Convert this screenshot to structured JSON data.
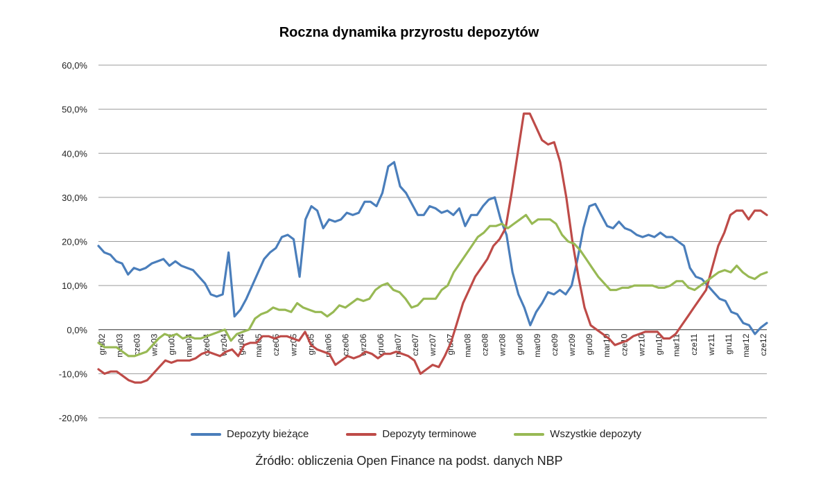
{
  "chart_data": {
    "type": "line",
    "title": "Roczna dynamika przyrostu depozytów",
    "source": "Źródło: obliczenia Open Finance na podst. danych NBP",
    "ylim": [
      -20,
      60
    ],
    "yticks": [
      60,
      50,
      40,
      30,
      20,
      10,
      0,
      -10,
      -20
    ],
    "ytick_labels": [
      "60,0%",
      "50,0%",
      "40,0%",
      "30,0%",
      "20,0%",
      "10,0%",
      "0,0%",
      "-10,0%",
      "-20,0%"
    ],
    "x_tick_labels": [
      "gru02",
      "mar03",
      "cze03",
      "wrz03",
      "gru03",
      "mar04",
      "cze04",
      "wrz04",
      "gru04",
      "mar05",
      "cze05",
      "wrz05",
      "gru05",
      "mar06",
      "cze06",
      "wrz06",
      "gru06",
      "mar07",
      "cze07",
      "wrz07",
      "gru07",
      "mar08",
      "cze08",
      "wrz08",
      "gru08",
      "mar09",
      "cze09",
      "wrz09",
      "gru09",
      "mar10",
      "cze10",
      "wrz10",
      "gru10",
      "mar11",
      "cze11",
      "wrz11",
      "gru11",
      "mar12",
      "cze12"
    ],
    "grid": true,
    "legend_position": "bottom",
    "series": [
      {
        "name": "Depozyty bieżące",
        "color": "#4a7ebb",
        "values": [
          19,
          17.5,
          17,
          15.5,
          15,
          12.5,
          14,
          13.5,
          14,
          15,
          15.5,
          16,
          14.5,
          15.5,
          14.5,
          14,
          13.5,
          12,
          10.5,
          8,
          7.5,
          8,
          17.5,
          3,
          4.5,
          7,
          10,
          13,
          16,
          17.5,
          18.5,
          21,
          21.5,
          20.5,
          12,
          25,
          28,
          27,
          23,
          25,
          24.5,
          25,
          26.5,
          26,
          26.5,
          29,
          29,
          28,
          31,
          37,
          38,
          32.5,
          31,
          28.5,
          26,
          26,
          28,
          27.5,
          26.5,
          27,
          26,
          27.5,
          23.5,
          26,
          26,
          28,
          29.5,
          30,
          25,
          21.5,
          13,
          8,
          5,
          1,
          4,
          6,
          8.5,
          8,
          9,
          8,
          10,
          16,
          23,
          28,
          28.5,
          26,
          23.5,
          23,
          24.5,
          23,
          22.5,
          21.5,
          21,
          21.5,
          21,
          22,
          21,
          21,
          20,
          19,
          14,
          12,
          11.5,
          10,
          8.5,
          7,
          6.5,
          4,
          3.5,
          1.5,
          1,
          -1,
          0.5,
          1.5
        ]
      },
      {
        "name": "Depozyty terminowe",
        "color": "#be4b48",
        "values": [
          -9,
          -10,
          -9.5,
          -9.5,
          -10.5,
          -11.5,
          -12,
          -12,
          -11.5,
          -10,
          -8.5,
          -7,
          -7.5,
          -7,
          -7,
          -7,
          -6.5,
          -5.5,
          -5,
          -5.5,
          -6,
          -5,
          -4.5,
          -6,
          -3.5,
          -3,
          -3,
          -1.5,
          -1.5,
          -2,
          -1.5,
          -1.5,
          -2,
          -2.5,
          -0.5,
          -3.5,
          -4.5,
          -5,
          -5.5,
          -8,
          -7,
          -6,
          -6.5,
          -6,
          -5,
          -5.5,
          -6.5,
          -5.5,
          -5.5,
          -5,
          -5.5,
          -6,
          -7,
          -10,
          -9,
          -8,
          -8.5,
          -6,
          -3,
          1.5,
          6,
          9,
          12,
          14,
          16,
          19,
          20.5,
          23,
          31,
          40,
          49,
          49,
          46,
          43,
          42,
          42.5,
          38,
          30,
          20,
          12,
          5,
          1,
          0,
          -1,
          -2,
          -3.5,
          -3,
          -2.5,
          -1.5,
          -1,
          -0.5,
          -0.5,
          -0.5,
          -2,
          -2,
          -1,
          1,
          3,
          5,
          7,
          9,
          14,
          19,
          22,
          26,
          27,
          27,
          25,
          27,
          27,
          26
        ]
      },
      {
        "name": "Wszystkie depozyty",
        "color": "#98b954",
        "values": [
          -3,
          -4,
          -4,
          -4,
          -5,
          -6,
          -6,
          -5.5,
          -5,
          -3.5,
          -2,
          -1,
          -1.5,
          -1,
          -2,
          -1.5,
          -2,
          -2,
          -1.5,
          -1,
          -0.5,
          0,
          -2.5,
          -1,
          -0.5,
          0,
          2.5,
          3.5,
          4,
          5,
          4.5,
          4.5,
          4,
          6,
          5,
          4.5,
          4,
          4,
          3,
          4,
          5.5,
          5,
          6,
          7,
          6.5,
          7,
          9,
          10,
          10.5,
          9,
          8.5,
          7,
          5,
          5.5,
          7,
          7,
          7,
          9,
          10,
          13,
          15,
          17,
          19,
          21,
          22,
          23.5,
          23.5,
          24,
          23,
          24,
          25,
          26,
          24,
          25,
          25,
          25,
          24,
          21.5,
          20,
          19.5,
          18,
          16,
          14,
          12,
          10.5,
          9,
          9,
          9.5,
          9.5,
          10,
          10,
          10,
          10,
          9.5,
          9.5,
          10,
          11,
          11,
          9.5,
          9,
          10,
          11,
          12,
          13,
          13.5,
          13,
          14.5,
          13,
          12,
          11.5,
          12.5,
          13
        ]
      }
    ]
  }
}
